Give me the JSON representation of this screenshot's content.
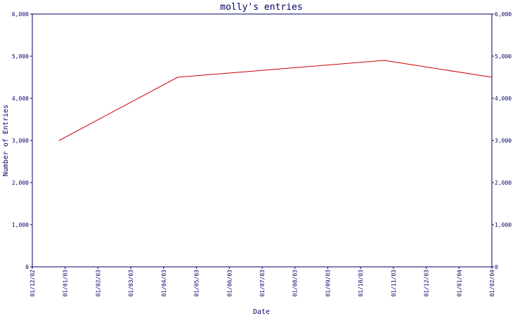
{
  "chart_data": {
    "type": "line",
    "title": "molly's entries",
    "xlabel": "Date",
    "ylabel": "Number of Entries",
    "x_ticks": [
      "01/12/02",
      "01/01/03",
      "01/02/03",
      "01/03/03",
      "01/04/03",
      "01/05/03",
      "01/06/03",
      "01/07/03",
      "01/08/03",
      "01/09/03",
      "01/10/03",
      "01/11/03",
      "01/12/03",
      "01/01/04",
      "01/02/04"
    ],
    "y_ticks": [
      "0",
      "1,000",
      "2,000",
      "3,000",
      "4,000",
      "5,000",
      "6,000"
    ],
    "ylim": [
      0,
      6000
    ],
    "xlim": [
      "2002-12-01",
      "2004-02-01"
    ],
    "series": [
      {
        "color": "#cc0000",
        "points": [
          {
            "x": "2002-12-26",
            "y": 3000
          },
          {
            "x": "2003-04-15",
            "y": 4500
          },
          {
            "x": "2003-10-24",
            "y": 4900
          },
          {
            "x": "2004-02-01",
            "y": 4500
          }
        ]
      }
    ],
    "grid": false,
    "colors": {
      "axis": "#000066",
      "line": "#cc0000",
      "text": "#000066"
    }
  }
}
